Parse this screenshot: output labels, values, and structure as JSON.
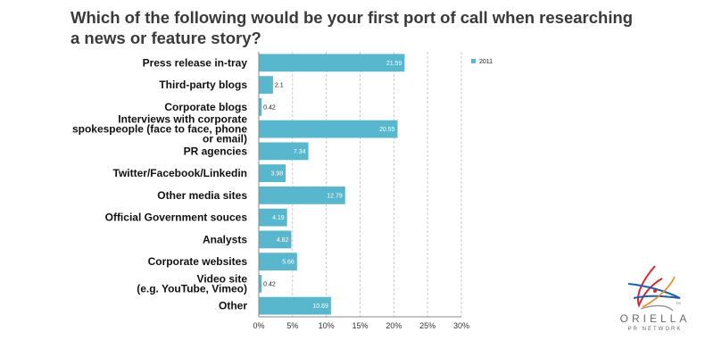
{
  "chart_data": {
    "type": "bar",
    "orientation": "horizontal",
    "title": "Which of the following would be your first port of call when researching a news or feature story?",
    "categories": [
      "Press release in-tray",
      "Third-party blogs",
      "Corporate blogs",
      "Interviews with corporate spokespeople (face to face, phone or email)",
      "PR agencies",
      "Twitter/Facebook/Linkedin",
      "Other media sites",
      "Official Government souces",
      "Analysts",
      "Corporate websites",
      "Video site (e.g. YouTube, Vimeo)",
      "Other"
    ],
    "category_lines": [
      [
        "Press release in-tray"
      ],
      [
        "Third-party blogs"
      ],
      [
        "Corporate blogs"
      ],
      [
        "Interviews with corporate",
        "spokespeople (face to face, phone",
        "or email)"
      ],
      [
        "PR agencies"
      ],
      [
        "Twitter/Facebook/Linkedin"
      ],
      [
        "Other media sites"
      ],
      [
        "Official Government souces"
      ],
      [
        "Analysts"
      ],
      [
        "Corporate websites"
      ],
      [
        "Video site",
        "(e.g. YouTube, Vimeo)"
      ],
      [
        "Other"
      ]
    ],
    "series": [
      {
        "name": "2011",
        "values": [
          21.59,
          2.1,
          0.42,
          20.55,
          7.34,
          3.98,
          12.79,
          4.19,
          4.82,
          5.66,
          0.42,
          10.69
        ],
        "value_labels": [
          "21.59",
          "2.1",
          "0.42",
          "20.55",
          "7.34",
          "3.98",
          "12.79",
          "4.19",
          "4.82",
          "5.66",
          "0.42",
          "10.69"
        ]
      }
    ],
    "xlim": [
      0,
      30
    ],
    "xticks": [
      0,
      5,
      10,
      15,
      20,
      25,
      30
    ],
    "xtick_labels": [
      "0%",
      "5%",
      "10%",
      "15%",
      "20%",
      "25%",
      "30%"
    ],
    "grid": "vertical, dashed",
    "legend": "right",
    "colors": {
      "bar": "#58b7cc",
      "grid": "#bdbdbd",
      "axis": "#888888"
    }
  },
  "logo": {
    "name": "ORIELLA",
    "sub": "PR NETWORK",
    "trademark": "TM"
  }
}
